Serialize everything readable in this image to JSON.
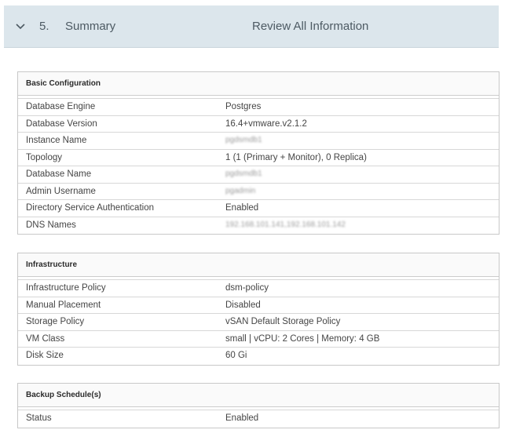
{
  "step": {
    "number": "5.",
    "title": "Summary",
    "description": "Review All Information",
    "icon": "chevron-down-icon"
  },
  "sections": {
    "basic": {
      "title": "Basic Configuration",
      "rows": [
        {
          "label": "Database Engine",
          "value": "Postgres"
        },
        {
          "label": "Database Version",
          "value": "16.4+vmware.v2.1.2"
        },
        {
          "label": "Instance Name",
          "value": "pgdsmdb1"
        },
        {
          "label": "Topology",
          "value": "1 (1 (Primary + Monitor), 0 Replica)"
        },
        {
          "label": "Database Name",
          "value": "pgdsmdb1"
        },
        {
          "label": "Admin Username",
          "value": "pgadmin"
        },
        {
          "label": "Directory Service Authentication",
          "value": "Enabled"
        },
        {
          "label": "DNS Names",
          "value": "192.168.101.141,192.168.101.142"
        }
      ]
    },
    "infrastructure": {
      "title": "Infrastructure",
      "rows": [
        {
          "label": "Infrastructure Policy",
          "value": "dsm-policy"
        },
        {
          "label": "Manual Placement",
          "value": "Disabled"
        },
        {
          "label": "Storage Policy",
          "value": "vSAN Default Storage Policy"
        },
        {
          "label": "VM Class",
          "value": "small | vCPU: 2 Cores | Memory: 4 GB"
        },
        {
          "label": "Disk Size",
          "value": "60 Gi"
        }
      ]
    },
    "backup": {
      "title": "Backup Schedule(s)",
      "rows": [
        {
          "label": "Status",
          "value": "Enabled"
        }
      ]
    }
  }
}
